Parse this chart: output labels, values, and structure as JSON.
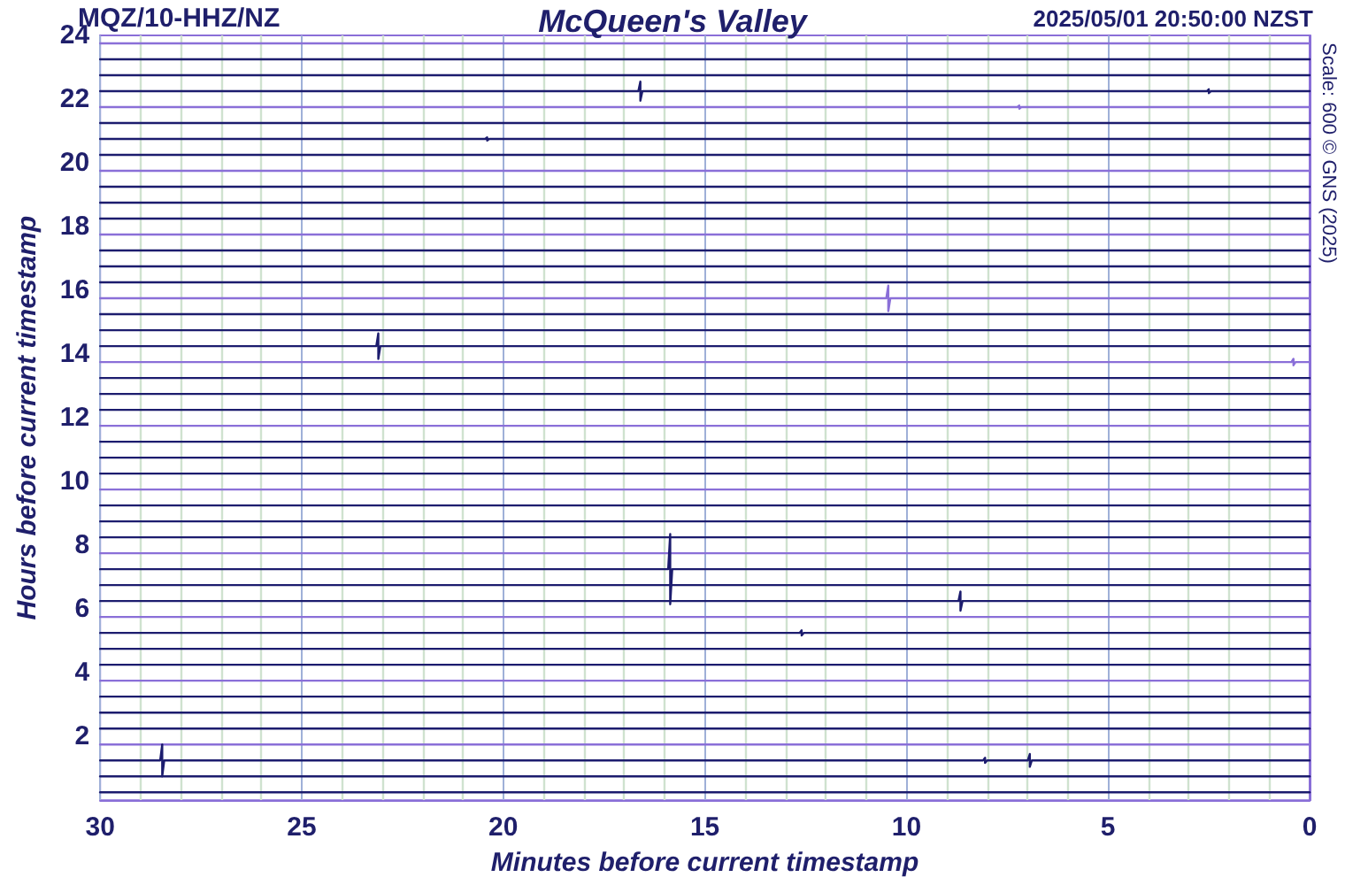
{
  "chart_data": {
    "type": "line",
    "title": "McQueen's Valley",
    "xlabel": "Minutes before current timestamp",
    "ylabel": "Hours before current timestamp",
    "annotations": [
      "MQZ/10-HHZ/NZ",
      "2025/05/01 20:50:00 NZST",
      "Scale: 600 © GNS (2025)"
    ],
    "xlim": [
      30,
      0
    ],
    "xticks": [
      30,
      25,
      20,
      15,
      10,
      5,
      0
    ],
    "ylim": [
      0,
      24
    ],
    "yticks": [
      2,
      4,
      6,
      8,
      10,
      12,
      14,
      16,
      18,
      20,
      22,
      24
    ],
    "grid": "x",
    "marker": "none",
    "line_style": "solid",
    "series": [
      {
        "color": "#8a6fd8",
        "x": [
          30,
          0
        ],
        "values": [
          23.75,
          23.75
        ]
      },
      {
        "color": "#1c1c6e",
        "x": [
          30,
          0
        ],
        "values": [
          23.25,
          23.25
        ]
      },
      {
        "color": "#1c1c6e",
        "x": [
          30,
          0
        ],
        "values": [
          22.75,
          22.75
        ]
      },
      {
        "color": "#1c1c6e",
        "x": [
          30,
          16.65,
          16.6,
          16.6,
          16.55,
          2.55,
          2.5,
          2.5,
          2.45,
          0
        ],
        "values": [
          22.25,
          22.25,
          22.55,
          21.95,
          22.25,
          22.25,
          22.31,
          22.19,
          22.25,
          22.25
        ]
      },
      {
        "color": "#8a6fd8",
        "x": [
          30,
          7.25,
          7.2,
          7.2,
          7.15,
          0
        ],
        "values": [
          21.75,
          21.75,
          21.8,
          21.7,
          21.75,
          21.75
        ]
      },
      {
        "color": "#1c1c6e",
        "x": [
          30,
          0
        ],
        "values": [
          21.25,
          21.25
        ]
      },
      {
        "color": "#1c1c6e",
        "x": [
          30,
          20.45,
          20.4,
          20.4,
          20.35,
          0
        ],
        "values": [
          20.75,
          20.75,
          20.8,
          20.7,
          20.75,
          20.75
        ]
      },
      {
        "color": "#1c1c6e",
        "x": [
          30,
          0
        ],
        "values": [
          20.25,
          20.25
        ]
      },
      {
        "color": "#8a6fd8",
        "x": [
          30,
          0
        ],
        "values": [
          19.75,
          19.75
        ]
      },
      {
        "color": "#1c1c6e",
        "x": [
          30,
          0
        ],
        "values": [
          19.25,
          19.25
        ]
      },
      {
        "color": "#1c1c6e",
        "x": [
          30,
          0
        ],
        "values": [
          18.75,
          18.75
        ]
      },
      {
        "color": "#1c1c6e",
        "x": [
          30,
          0
        ],
        "values": [
          18.25,
          18.25
        ]
      },
      {
        "color": "#8a6fd8",
        "x": [
          30,
          0
        ],
        "values": [
          17.75,
          17.75
        ]
      },
      {
        "color": "#1c1c6e",
        "x": [
          30,
          0
        ],
        "values": [
          17.25,
          17.25
        ]
      },
      {
        "color": "#1c1c6e",
        "x": [
          30,
          0
        ],
        "values": [
          16.75,
          16.75
        ]
      },
      {
        "color": "#1c1c6e",
        "x": [
          30,
          0
        ],
        "values": [
          16.25,
          16.25
        ]
      },
      {
        "color": "#8a6fd8",
        "x": [
          30,
          10.5,
          10.45,
          10.45,
          10.4,
          0
        ],
        "values": [
          15.75,
          15.75,
          16.15,
          15.35,
          15.75,
          15.75
        ]
      },
      {
        "color": "#1c1c6e",
        "x": [
          30,
          0
        ],
        "values": [
          15.25,
          15.25
        ]
      },
      {
        "color": "#1c1c6e",
        "x": [
          30,
          0
        ],
        "values": [
          14.75,
          14.75
        ]
      },
      {
        "color": "#1c1c6e",
        "x": [
          30,
          23.15,
          23.1,
          23.1,
          23.05,
          0
        ],
        "values": [
          14.25,
          14.25,
          14.65,
          13.85,
          14.25,
          14.25
        ]
      },
      {
        "color": "#8a6fd8",
        "x": [
          30,
          0.45,
          0.4,
          0.4,
          0.35,
          0
        ],
        "values": [
          13.75,
          13.75,
          13.85,
          13.65,
          13.75,
          13.75
        ]
      },
      {
        "color": "#1c1c6e",
        "x": [
          30,
          0
        ],
        "values": [
          13.25,
          13.25
        ]
      },
      {
        "color": "#1c1c6e",
        "x": [
          30,
          0
        ],
        "values": [
          12.75,
          12.75
        ]
      },
      {
        "color": "#1c1c6e",
        "x": [
          30,
          0
        ],
        "values": [
          12.25,
          12.25
        ]
      },
      {
        "color": "#8a6fd8",
        "x": [
          30,
          0
        ],
        "values": [
          11.75,
          11.75
        ]
      },
      {
        "color": "#1c1c6e",
        "x": [
          30,
          0
        ],
        "values": [
          11.25,
          11.25
        ]
      },
      {
        "color": "#1c1c6e",
        "x": [
          30,
          0
        ],
        "values": [
          10.75,
          10.75
        ]
      },
      {
        "color": "#1c1c6e",
        "x": [
          30,
          0
        ],
        "values": [
          10.25,
          10.25
        ]
      },
      {
        "color": "#8a6fd8",
        "x": [
          30,
          0
        ],
        "values": [
          9.75,
          9.75
        ]
      },
      {
        "color": "#1c1c6e",
        "x": [
          30,
          0
        ],
        "values": [
          9.25,
          9.25
        ]
      },
      {
        "color": "#1c1c6e",
        "x": [
          30,
          0
        ],
        "values": [
          8.75,
          8.75
        ]
      },
      {
        "color": "#1c1c6e",
        "x": [
          30,
          0
        ],
        "values": [
          8.25,
          8.25
        ]
      },
      {
        "color": "#8a6fd8",
        "x": [
          30,
          0
        ],
        "values": [
          7.75,
          7.75
        ]
      },
      {
        "color": "#1c1c6e",
        "x": [
          30,
          15.91,
          15.86,
          15.86,
          15.81,
          0
        ],
        "values": [
          7.25,
          7.25,
          8.35,
          6.15,
          7.25,
          7.25
        ]
      },
      {
        "color": "#1c1c6e",
        "x": [
          30,
          0
        ],
        "values": [
          6.75,
          6.75
        ]
      },
      {
        "color": "#1c1c6e",
        "x": [
          30,
          8.71,
          8.66,
          8.66,
          8.61,
          0
        ],
        "values": [
          6.25,
          6.25,
          6.55,
          5.95,
          6.25,
          6.25
        ]
      },
      {
        "color": "#8a6fd8",
        "x": [
          30,
          0
        ],
        "values": [
          5.75,
          5.75
        ]
      },
      {
        "color": "#1c1c6e",
        "x": [
          30,
          12.65,
          12.6,
          12.6,
          12.55,
          0
        ],
        "values": [
          5.25,
          5.25,
          5.33,
          5.17,
          5.25,
          5.25
        ]
      },
      {
        "color": "#1c1c6e",
        "x": [
          30,
          0
        ],
        "values": [
          4.75,
          4.75
        ]
      },
      {
        "color": "#1c1c6e",
        "x": [
          30,
          0
        ],
        "values": [
          4.25,
          4.25
        ]
      },
      {
        "color": "#8a6fd8",
        "x": [
          30,
          0
        ],
        "values": [
          3.75,
          3.75
        ]
      },
      {
        "color": "#1c1c6e",
        "x": [
          30,
          0
        ],
        "values": [
          3.25,
          3.25
        ]
      },
      {
        "color": "#1c1c6e",
        "x": [
          30,
          0
        ],
        "values": [
          2.75,
          2.75
        ]
      },
      {
        "color": "#1c1c6e",
        "x": [
          30,
          0
        ],
        "values": [
          2.25,
          2.25
        ]
      },
      {
        "color": "#8a6fd8",
        "x": [
          30,
          0
        ],
        "values": [
          1.75,
          1.75
        ]
      },
      {
        "color": "#1c1c6e",
        "x": [
          30,
          28.51,
          28.46,
          28.46,
          28.41,
          8.1,
          8.05,
          8.05,
          8.0,
          6.99,
          6.94,
          6.94,
          6.89,
          0
        ],
        "values": [
          1.25,
          1.25,
          1.75,
          0.75,
          1.25,
          1.25,
          1.33,
          1.17,
          1.25,
          1.25,
          1.45,
          1.05,
          1.25,
          1.25
        ]
      },
      {
        "color": "#1c1c6e",
        "x": [
          30,
          0
        ],
        "values": [
          0.75,
          0.75
        ]
      },
      {
        "color": "#1c1c6e",
        "x": [
          30,
          0
        ],
        "values": [
          0.25,
          0.25
        ]
      }
    ]
  }
}
